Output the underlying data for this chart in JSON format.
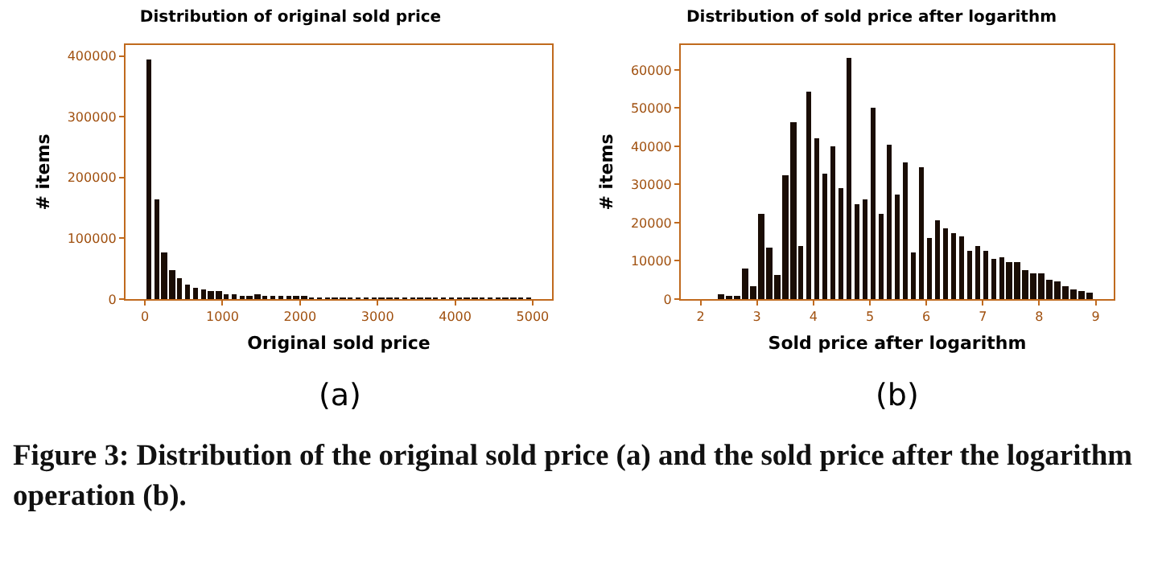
{
  "chart_data": [
    {
      "type": "histogram",
      "title": "Distribution of original sold price",
      "xlabel": "Original sold price",
      "ylabel": "# items",
      "color": "#1a0d05",
      "bins": [
        0,
        100,
        200,
        300,
        400,
        500,
        600,
        700,
        800,
        900,
        1000,
        1100,
        1200,
        1300,
        1400,
        1500,
        1600,
        1700,
        1800,
        1900,
        2000,
        2100,
        2200,
        2300,
        2400,
        2500,
        2600,
        2700,
        2800,
        2900,
        3000,
        3100,
        3200,
        3300,
        3400,
        3500,
        3600,
        3700,
        3800,
        3900,
        4000,
        4100,
        4200,
        4300,
        4400,
        4500,
        4600,
        4700,
        4800,
        4900,
        5000
      ],
      "values": [
        395000,
        165000,
        77000,
        48000,
        35000,
        23000,
        19000,
        17000,
        13000,
        13000,
        8000,
        8000,
        6000,
        6000,
        7000,
        5000,
        5000,
        4000,
        4000,
        3000,
        3000,
        2500,
        2500,
        2000,
        2000,
        2000,
        1500,
        1500,
        1500,
        1000,
        1000,
        1000,
        1000,
        1000,
        1000,
        1000,
        1000,
        1000,
        1000,
        500,
        1000,
        500,
        1000,
        500,
        500,
        1000,
        500,
        500,
        500,
        1000
      ],
      "xlim": [
        -250,
        5250
      ],
      "xticks": [
        0,
        1000,
        2000,
        3000,
        4000,
        5000
      ],
      "ylim": [
        0,
        418000
      ],
      "yticks": [
        0,
        100000,
        200000,
        300000,
        400000
      ],
      "grid": false,
      "annotations": [
        "(a)",
        "Figure 3: Distribution of the original sold price (a) and the sold price after the logarithm operation (b)."
      ]
    },
    {
      "type": "histogram",
      "title": "Distribution of sold price after logarithm",
      "xlabel": "Sold price after logarithm",
      "ylabel": "# items",
      "color": "#1a0d05",
      "bins": [
        2.29,
        2.432,
        2.574,
        2.716,
        2.858,
        3.0,
        3.142,
        3.284,
        3.426,
        3.568,
        3.71,
        3.852,
        3.994,
        4.136,
        4.278,
        4.42,
        4.562,
        4.704,
        4.846,
        4.988,
        5.13,
        5.272,
        5.414,
        5.556,
        5.698,
        5.84,
        5.982,
        6.124,
        6.266,
        6.408,
        6.55,
        6.692,
        6.834,
        6.976,
        7.118,
        7.26,
        7.402,
        7.544,
        7.686,
        7.828,
        7.97,
        8.112,
        8.254,
        8.396,
        8.538,
        8.68,
        8.822,
        8.964
      ],
      "values": [
        1200,
        900,
        700,
        7800,
        3500,
        22200,
        13500,
        6300,
        32300,
        46200,
        13800,
        54500,
        42000,
        33000,
        40000,
        29000,
        63000,
        24800,
        26000,
        50000,
        22300,
        40500,
        27300,
        35800,
        12000,
        34700,
        16000,
        20500,
        18600,
        17300,
        16400,
        12600,
        14000,
        12800,
        10400,
        10900,
        9600,
        9700,
        7700,
        6800,
        6600,
        5100,
        4500,
        3400,
        2400,
        1900,
        1500
      ],
      "xlim": [
        1.65,
        9.32
      ],
      "xticks": [
        2,
        3,
        4,
        5,
        6,
        7,
        8,
        9
      ],
      "ylim": [
        0,
        66500
      ],
      "yticks": [
        0,
        10000,
        20000,
        30000,
        40000,
        50000,
        60000
      ],
      "grid": false,
      "annotations": [
        "(b)"
      ]
    }
  ]
}
